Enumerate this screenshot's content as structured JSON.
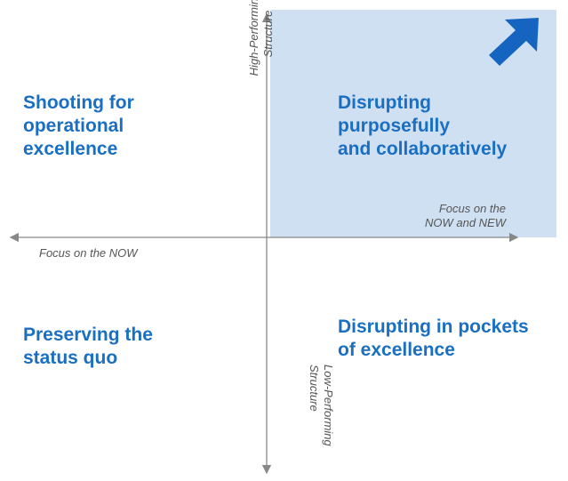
{
  "quadrants": {
    "top_left": "Shooting for\noperational\nexcellence",
    "top_right": "Disrupting\npurposefully\nand collaboratively",
    "bottom_left": "Preserving the\nstatus quo",
    "bottom_right": "Disrupting in pockets\nof excellence"
  },
  "axes": {
    "x_left": "Focus on the NOW",
    "x_right": [
      "Focus on the",
      "NOW and NEW"
    ],
    "y_top": [
      "High-Performing",
      "Structure"
    ],
    "y_bottom": [
      "Low-Performing",
      "Structure"
    ]
  },
  "colors": {
    "highlight": "#cfe0f3",
    "label": "#1a6fc2",
    "arrow": "#1565c0",
    "axis": "#888888"
  },
  "icons": {
    "corner_arrow": "arrow-up-right-icon"
  }
}
